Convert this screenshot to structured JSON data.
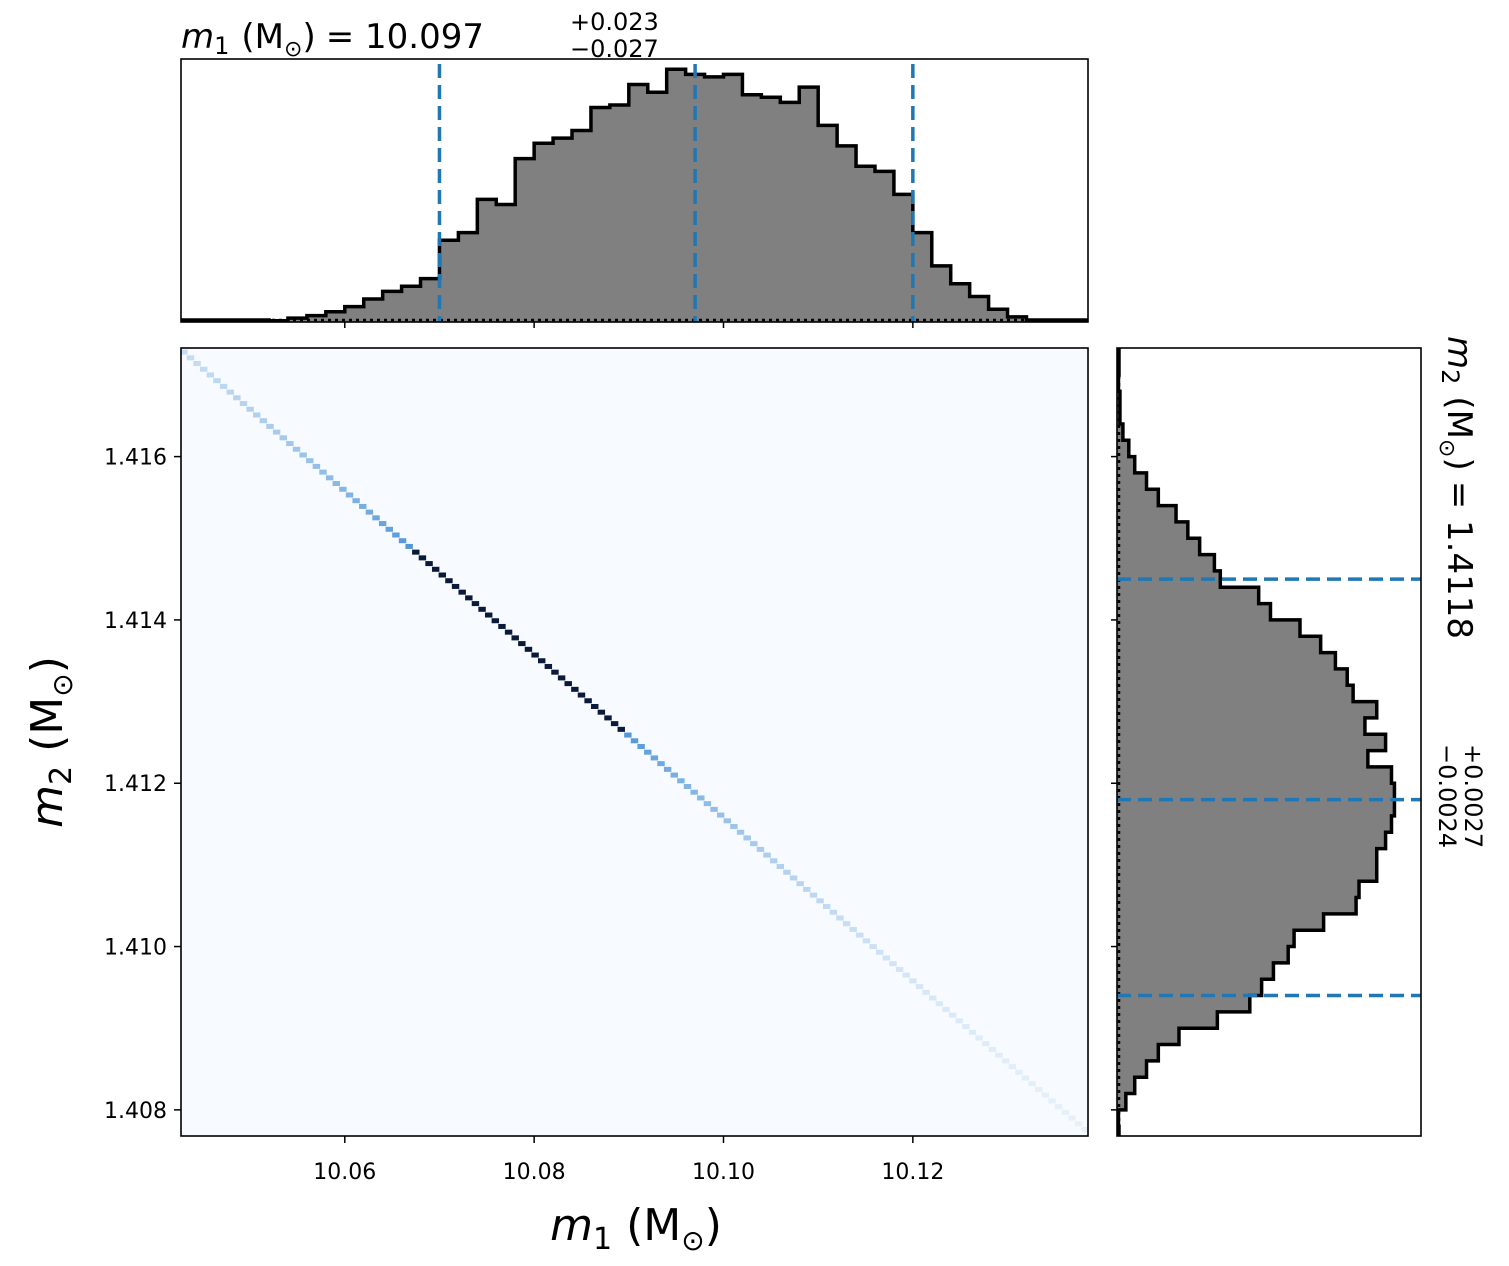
{
  "chart_data": {
    "type": "heatmap",
    "x_param": {
      "title_var": "m",
      "title_sub": "1",
      "title_unit": "(M",
      "title_value": "= 10.097",
      "err_plus": "+0.023",
      "err_minus": "−0.027",
      "median": 10.097,
      "lower": 10.07,
      "upper": 10.12
    },
    "y_param": {
      "title_var": "m",
      "title_sub": "2",
      "title_unit": "(M",
      "title_value": "= 1.4118",
      "err_plus": "+0.0027",
      "err_minus": "−0.0024",
      "median": 1.4118,
      "lower": 1.4094,
      "upper": 1.4145
    },
    "xlabel": {
      "var": "m",
      "sub": "1",
      "unit": "(M"
    },
    "ylabel": {
      "var": "m",
      "sub": "2",
      "unit": "(M"
    },
    "sun_symbol": "⊙",
    "close_paren": ")",
    "xlim": [
      10.0427,
      10.1385
    ],
    "ylim": [
      1.40768,
      1.41733
    ],
    "xticks": [
      {
        "value": 10.06,
        "label": "10.06"
      },
      {
        "value": 10.08,
        "label": "10.08"
      },
      {
        "value": 10.1,
        "label": "10.10"
      },
      {
        "value": 10.12,
        "label": "10.12"
      }
    ],
    "yticks": [
      {
        "value": 1.408,
        "label": "1.408"
      },
      {
        "value": 1.41,
        "label": "1.410"
      },
      {
        "value": 1.412,
        "label": "1.412"
      },
      {
        "value": 1.414,
        "label": "1.414"
      },
      {
        "value": 1.416,
        "label": "1.416"
      }
    ],
    "hist_x": {
      "bin_width": 0.002,
      "bin_starts": [
        10.052,
        10.054,
        10.056,
        10.058,
        10.06,
        10.062,
        10.064,
        10.066,
        10.068,
        10.07,
        10.072,
        10.074,
        10.076,
        10.078,
        10.08,
        10.082,
        10.084,
        10.086,
        10.088,
        10.09,
        10.092,
        10.094,
        10.096,
        10.098,
        10.1,
        10.102,
        10.104,
        10.106,
        10.108,
        10.11,
        10.112,
        10.114,
        10.116,
        10.118,
        10.12,
        10.122,
        10.124,
        10.126,
        10.128,
        10.13
      ],
      "counts": [
        0.005,
        0.015,
        0.025,
        0.04,
        0.06,
        0.09,
        0.12,
        0.14,
        0.17,
        0.32,
        0.35,
        0.48,
        0.46,
        0.64,
        0.7,
        0.72,
        0.75,
        0.84,
        0.85,
        0.93,
        0.9,
        0.99,
        0.97,
        0.96,
        0.97,
        0.89,
        0.88,
        0.86,
        0.92,
        0.77,
        0.69,
        0.61,
        0.59,
        0.5,
        0.35,
        0.22,
        0.15,
        0.1,
        0.05,
        0.02
      ],
      "ylim": [
        0,
        1.03
      ]
    },
    "hist_y": {
      "bin_width": 0.0002,
      "bin_starts": [
        1.4168,
        1.4166,
        1.4164,
        1.4162,
        1.416,
        1.4158,
        1.4156,
        1.4154,
        1.4152,
        1.415,
        1.4148,
        1.4146,
        1.4144,
        1.4142,
        1.414,
        1.4138,
        1.4136,
        1.4134,
        1.4132,
        1.413,
        1.4128,
        1.4126,
        1.4124,
        1.4122,
        1.412,
        1.4118,
        1.4116,
        1.4114,
        1.4112,
        1.411,
        1.4108,
        1.4106,
        1.4104,
        1.4102,
        1.41,
        1.4098,
        1.4096,
        1.4094,
        1.4092,
        1.409,
        1.4088,
        1.4086,
        1.4084,
        1.4082,
        1.408,
        1.4078
      ],
      "counts": [
        0.005,
        0.01,
        0.01,
        0.02,
        0.04,
        0.06,
        0.1,
        0.14,
        0.2,
        0.24,
        0.28,
        0.33,
        0.35,
        0.48,
        0.52,
        0.62,
        0.69,
        0.74,
        0.78,
        0.8,
        0.88,
        0.84,
        0.91,
        0.85,
        0.93,
        0.94,
        0.94,
        0.93,
        0.91,
        0.88,
        0.88,
        0.82,
        0.81,
        0.7,
        0.6,
        0.58,
        0.53,
        0.49,
        0.45,
        0.34,
        0.21,
        0.14,
        0.1,
        0.06,
        0.03,
        0.005
      ],
      "xlim": [
        0,
        1.03
      ]
    },
    "scatter_line": {
      "m1_start": 10.043,
      "m2_start": 1.41728,
      "slope": -0.1
    },
    "core": [
      10.067,
      10.0895
    ],
    "colors": {
      "hist_fill": "#808080",
      "hist_edge": "#000000",
      "quantile": "#1f77b4",
      "bg": "#f7fbff"
    }
  }
}
